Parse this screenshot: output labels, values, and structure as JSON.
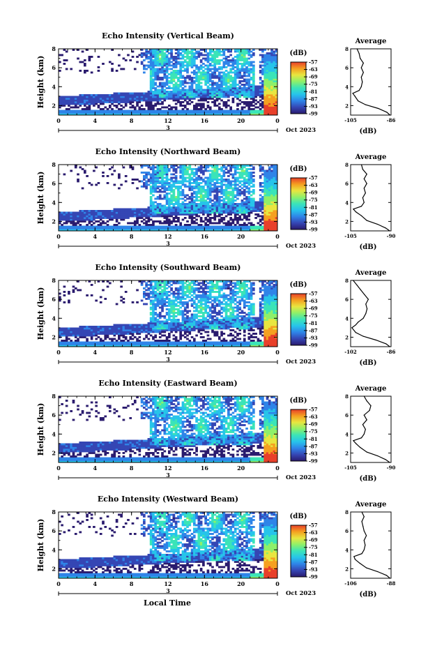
{
  "chart_data": [
    {
      "type": "heatmap",
      "title": "Echo Intensity (Vertical Beam)",
      "ylabel": "Height (km)",
      "x_ticks": [
        "0",
        "4",
        "8",
        "12",
        "16",
        "20",
        "0"
      ],
      "x_range": [
        0,
        24
      ],
      "y_ticks": [
        "2",
        "4",
        "6",
        "8"
      ],
      "y_range": [
        1,
        8
      ],
      "date_label": "Oct 2023",
      "day_marker": "3",
      "colorbar": {
        "unit": "(dB)",
        "ticks": [
          "-57",
          "-63",
          "-69",
          "-75",
          "-81",
          "-87",
          "-93",
          "-99"
        ],
        "range": [
          -99,
          -57
        ]
      },
      "profile": {
        "title": "Average",
        "xlabel": "(dB)",
        "x_ticks": [
          "-105",
          "-86"
        ],
        "x_range": [
          -105,
          -86
        ],
        "y_ticks": [
          "2",
          "4",
          "6",
          "8"
        ],
        "y_range": [
          1,
          8
        ],
        "points": [
          [
            -86.5,
            1.0
          ],
          [
            -88,
            1.3
          ],
          [
            -92,
            1.7
          ],
          [
            -98,
            2.1
          ],
          [
            -101.5,
            2.5
          ],
          [
            -103,
            3.0
          ],
          [
            -104,
            3.3
          ],
          [
            -101,
            3.6
          ],
          [
            -100,
            4.0
          ],
          [
            -99.5,
            4.5
          ],
          [
            -100,
            5.0
          ],
          [
            -99,
            5.5
          ],
          [
            -100,
            6.0
          ],
          [
            -99,
            6.5
          ],
          [
            -100.5,
            7.0
          ],
          [
            -101,
            7.5
          ],
          [
            -102,
            8.0
          ]
        ]
      }
    },
    {
      "type": "heatmap",
      "title": "Echo Intensity (Northward Beam)",
      "ylabel": "Height (km)",
      "x_ticks": [
        "0",
        "4",
        "8",
        "12",
        "16",
        "20",
        "0"
      ],
      "x_range": [
        0,
        24
      ],
      "y_ticks": [
        "2",
        "4",
        "6",
        "8"
      ],
      "y_range": [
        1,
        8
      ],
      "date_label": "Oct 2023",
      "day_marker": "3",
      "colorbar": {
        "unit": "(dB)",
        "ticks": [
          "-57",
          "-63",
          "-69",
          "-75",
          "-81",
          "-87",
          "-93",
          "-99"
        ],
        "range": [
          -99,
          -57
        ]
      },
      "profile": {
        "title": "Average",
        "xlabel": "(dB)",
        "x_ticks": [
          "-105",
          "-90"
        ],
        "x_range": [
          -105,
          -90
        ],
        "y_ticks": [
          "2",
          "4",
          "6",
          "8"
        ],
        "y_range": [
          1,
          8
        ],
        "points": [
          [
            -90.5,
            1.0
          ],
          [
            -92,
            1.3
          ],
          [
            -95,
            1.7
          ],
          [
            -99,
            2.1
          ],
          [
            -101,
            2.6
          ],
          [
            -103,
            3.0
          ],
          [
            -104,
            3.3
          ],
          [
            -101,
            3.6
          ],
          [
            -100,
            4.0
          ],
          [
            -100.5,
            4.5
          ],
          [
            -99.5,
            5.0
          ],
          [
            -100,
            5.5
          ],
          [
            -99,
            6.0
          ],
          [
            -100,
            6.5
          ],
          [
            -99,
            7.0
          ],
          [
            -100.5,
            7.5
          ],
          [
            -101,
            8.0
          ]
        ]
      }
    },
    {
      "type": "heatmap",
      "title": "Echo Intensity (Southward Beam)",
      "ylabel": "Height (km)",
      "x_ticks": [
        "0",
        "4",
        "8",
        "12",
        "16",
        "20",
        "0"
      ],
      "x_range": [
        0,
        24
      ],
      "y_ticks": [
        "2",
        "4",
        "6",
        "8"
      ],
      "y_range": [
        1,
        8
      ],
      "date_label": "Oct 2023",
      "day_marker": "3",
      "colorbar": {
        "unit": "(dB)",
        "ticks": [
          "-57",
          "-63",
          "-69",
          "-75",
          "-81",
          "-87",
          "-93",
          "-99"
        ],
        "range": [
          -99,
          -57
        ]
      },
      "profile": {
        "title": "Average",
        "xlabel": "(dB)",
        "x_ticks": [
          "-102",
          "-86"
        ],
        "x_range": [
          -102,
          -86
        ],
        "y_ticks": [
          "2",
          "4",
          "6",
          "8"
        ],
        "y_range": [
          1,
          8
        ],
        "points": [
          [
            -86.5,
            1.0
          ],
          [
            -88,
            1.3
          ],
          [
            -92,
            1.7
          ],
          [
            -97,
            2.1
          ],
          [
            -100,
            2.5
          ],
          [
            -101.5,
            3.0
          ],
          [
            -100,
            3.3
          ],
          [
            -99,
            3.6
          ],
          [
            -97,
            4.0
          ],
          [
            -96,
            4.5
          ],
          [
            -95.5,
            5.0
          ],
          [
            -96,
            5.5
          ],
          [
            -95,
            6.0
          ],
          [
            -96.5,
            6.5
          ],
          [
            -98,
            7.0
          ],
          [
            -99.5,
            7.5
          ],
          [
            -101,
            8.0
          ]
        ]
      }
    },
    {
      "type": "heatmap",
      "title": "Echo Intensity (Eastward Beam)",
      "ylabel": "Height (km)",
      "x_ticks": [
        "0",
        "4",
        "8",
        "12",
        "16",
        "20",
        "0"
      ],
      "x_range": [
        0,
        24
      ],
      "y_ticks": [
        "2",
        "4",
        "6",
        "8"
      ],
      "y_range": [
        1,
        8
      ],
      "date_label": "Oct 2023",
      "day_marker": "3",
      "colorbar": {
        "unit": "(dB)",
        "ticks": [
          "-57",
          "-63",
          "-69",
          "-75",
          "-81",
          "-87",
          "-93",
          "-99"
        ],
        "range": [
          -99,
          -57
        ]
      },
      "profile": {
        "title": "Average",
        "xlabel": "(dB)",
        "x_ticks": [
          "-105",
          "-90"
        ],
        "x_range": [
          -105,
          -90
        ],
        "y_ticks": [
          "2",
          "4",
          "6",
          "8"
        ],
        "y_range": [
          1,
          8
        ],
        "points": [
          [
            -90.5,
            1.0
          ],
          [
            -92,
            1.3
          ],
          [
            -95,
            1.7
          ],
          [
            -99,
            2.1
          ],
          [
            -101.5,
            2.6
          ],
          [
            -103,
            3.0
          ],
          [
            -104,
            3.3
          ],
          [
            -101,
            3.6
          ],
          [
            -100,
            4.0
          ],
          [
            -99.5,
            4.5
          ],
          [
            -100.5,
            5.0
          ],
          [
            -99,
            5.5
          ],
          [
            -100,
            6.0
          ],
          [
            -98,
            6.5
          ],
          [
            -97.5,
            7.0
          ],
          [
            -99,
            7.5
          ],
          [
            -100,
            8.0
          ]
        ]
      }
    },
    {
      "type": "heatmap",
      "title": "Echo Intensity (Westward Beam)",
      "ylabel": "Height (km)",
      "xlabel": "Local Time",
      "x_ticks": [
        "0",
        "4",
        "8",
        "12",
        "16",
        "20",
        "0"
      ],
      "x_range": [
        0,
        24
      ],
      "y_ticks": [
        "2",
        "4",
        "6",
        "8"
      ],
      "y_range": [
        1,
        8
      ],
      "date_label": "Oct 2023",
      "day_marker": "3",
      "colorbar": {
        "unit": "(dB)",
        "ticks": [
          "-57",
          "-63",
          "-69",
          "-75",
          "-81",
          "-87",
          "-93",
          "-99"
        ],
        "range": [
          -99,
          -57
        ]
      },
      "profile": {
        "title": "Average",
        "xlabel": "(dB)",
        "x_ticks": [
          "-106",
          "-88"
        ],
        "x_range": [
          -106,
          -88
        ],
        "y_ticks": [
          "2",
          "4",
          "6",
          "8"
        ],
        "y_range": [
          1,
          8
        ],
        "points": [
          [
            -88.5,
            1.0
          ],
          [
            -90,
            1.3
          ],
          [
            -94,
            1.7
          ],
          [
            -99,
            2.1
          ],
          [
            -102,
            2.6
          ],
          [
            -104,
            3.0
          ],
          [
            -104.5,
            3.3
          ],
          [
            -101,
            3.6
          ],
          [
            -100,
            4.0
          ],
          [
            -99.5,
            4.5
          ],
          [
            -100,
            5.0
          ],
          [
            -99,
            5.5
          ],
          [
            -100,
            6.0
          ],
          [
            -100.5,
            6.5
          ],
          [
            -101,
            7.0
          ],
          [
            -100,
            7.5
          ],
          [
            -101,
            8.0
          ]
        ]
      }
    }
  ],
  "colors": {
    "colormap": [
      "#2a1b6e",
      "#3546b4",
      "#2f84e8",
      "#27c4ea",
      "#3be4b8",
      "#8ef06a",
      "#e8e640",
      "#f5a020",
      "#e8402a"
    ],
    "line": "#000000",
    "background": "#ffffff"
  }
}
